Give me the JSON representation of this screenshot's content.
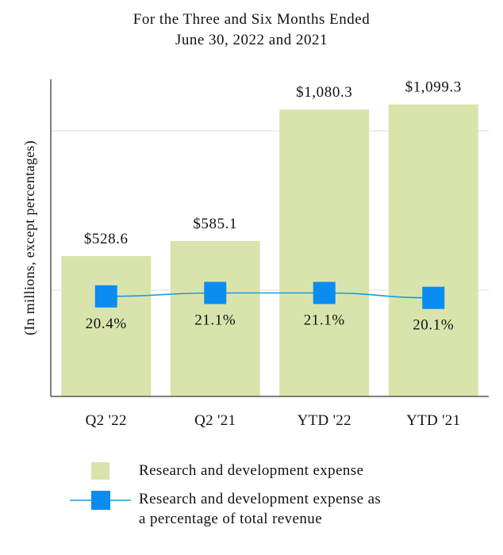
{
  "chart_data": {
    "type": "bar",
    "title": "For the Three and Six Months Ended",
    "subtitle": "June 30, 2022 and 2021",
    "ylabel": "(In millions, except percentages)",
    "xlabel": "",
    "categories": [
      "Q2 '22",
      "Q2 '21",
      "YTD '22",
      "YTD '21"
    ],
    "ylim": [
      0,
      1200
    ],
    "grid": true,
    "series": [
      {
        "name": "Research and development expense",
        "kind": "bar",
        "values": [
          528.6,
          585.1,
          1080.3,
          1099.3
        ],
        "labels": [
          "$528.6",
          "$585.1",
          "$1,080.3",
          "$1,099.3"
        ],
        "color": "#d9e4ad"
      },
      {
        "name": "Research and development expense as a percentage of total revenue",
        "kind": "line",
        "values": [
          20.4,
          21.1,
          21.1,
          20.1
        ],
        "labels": [
          "20.4%",
          "21.1%",
          "21.1%",
          "20.1%"
        ],
        "color": "#1a9be0",
        "marker_color": "#0a8cf0"
      }
    ],
    "legend": {
      "position": "bottom",
      "bar_label": "Research and development expense",
      "line_label_1": "Research and development expense as",
      "line_label_2": "a percentage of total revenue"
    }
  }
}
